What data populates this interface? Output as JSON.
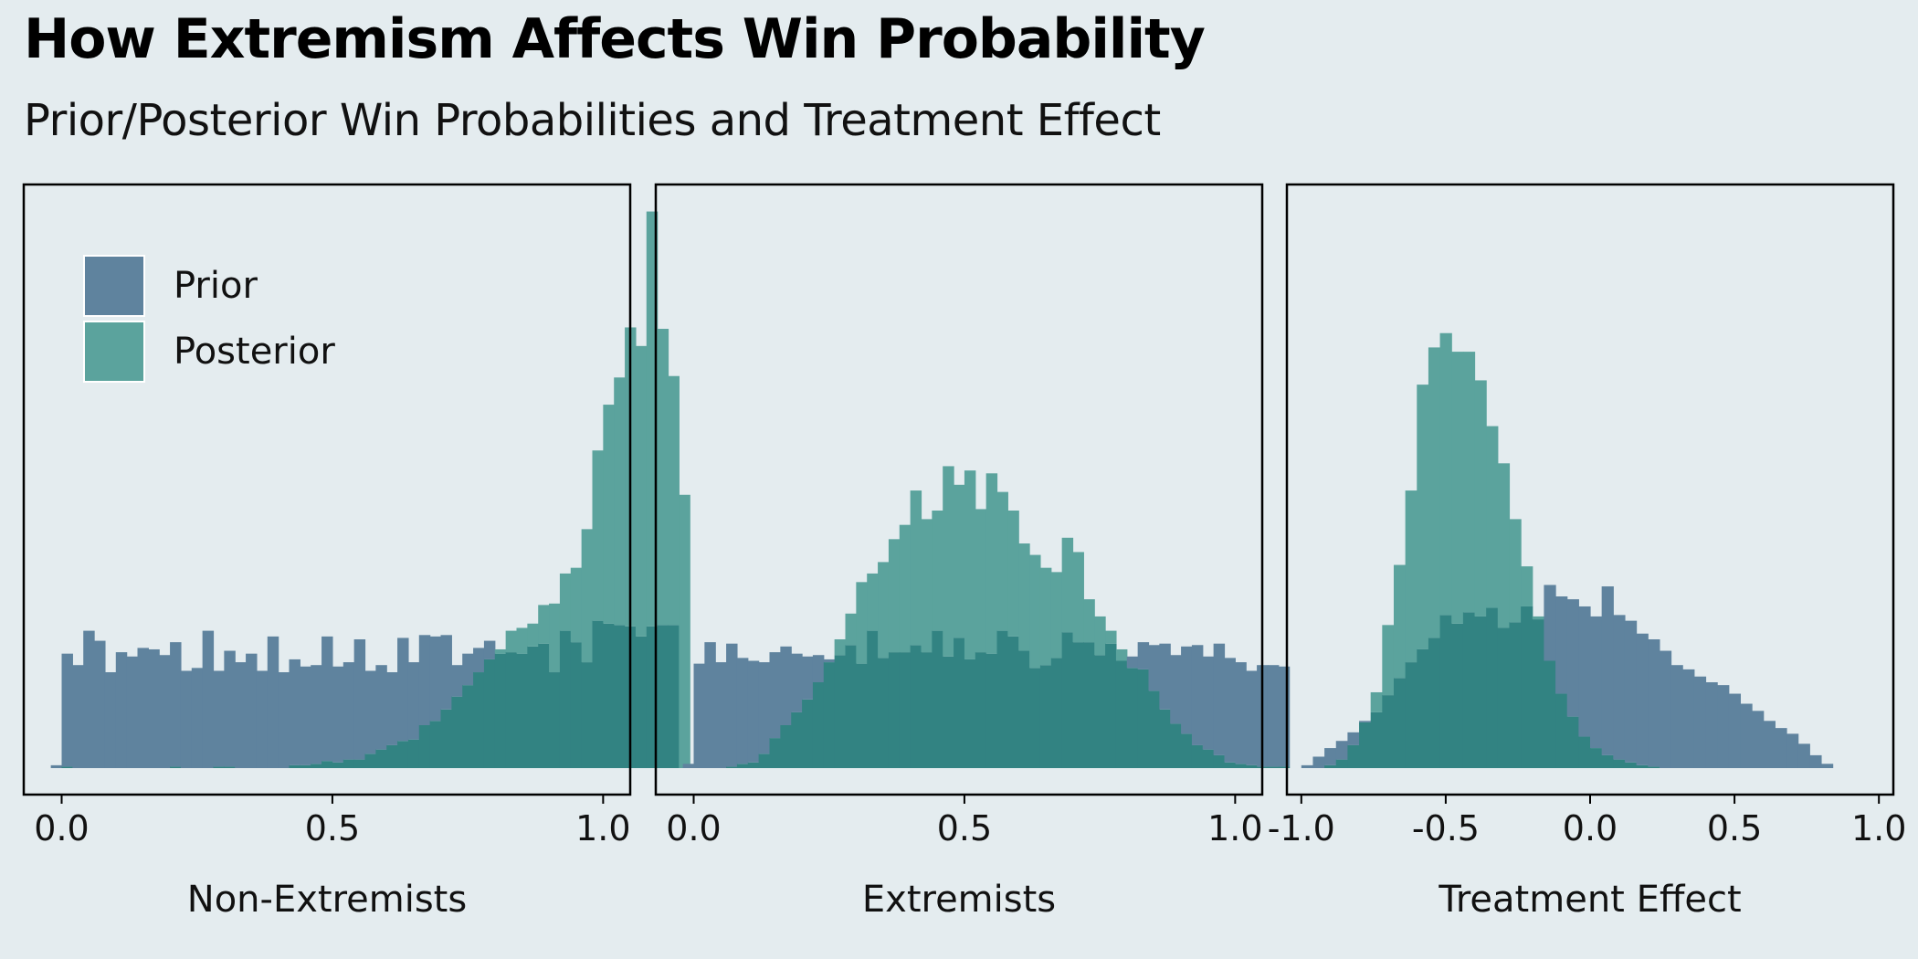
{
  "title": "How Extremism Affects Win Probability",
  "subtitle": "Prior/Posterior Win Probabilities and Treatment Effect",
  "colors": {
    "background": "#e4ecef",
    "prior": "#5f839e",
    "posterior": "#5ba39d",
    "overlap": "#328382",
    "frame": "#000000"
  },
  "legend": {
    "placement": "top-left of first panel",
    "items": [
      {
        "label": "Prior",
        "color": "#5f839e"
      },
      {
        "label": "Posterior",
        "color": "#5ba39d"
      }
    ]
  },
  "chart_data": [
    {
      "type": "histogram",
      "xlabel": "Non-Extremists",
      "ylabel": "",
      "xlim": [
        -0.07,
        1.05
      ],
      "ylim": [
        0,
        0.39
      ],
      "xticks": [
        0.0,
        0.5,
        1.0
      ],
      "xtick_labels": [
        "0.0",
        "0.5",
        "1.0"
      ],
      "bin_start": -0.02,
      "bin_width": 0.02,
      "series": [
        {
          "name": "Prior",
          "values": [
            0.002,
            0.08,
            0.072,
            0.096,
            0.089,
            0.067,
            0.081,
            0.078,
            0.084,
            0.083,
            0.079,
            0.088,
            0.068,
            0.07,
            0.096,
            0.068,
            0.082,
            0.074,
            0.08,
            0.068,
            0.092,
            0.067,
            0.076,
            0.071,
            0.072,
            0.092,
            0.071,
            0.074,
            0.09,
            0.068,
            0.072,
            0.067,
            0.091,
            0.074,
            0.093,
            0.092,
            0.093,
            0.072,
            0.08,
            0.084,
            0.089,
            0.08,
            0.081,
            0.08,
            0.085,
            0.087,
            0.067,
            0.096,
            0.088,
            0.074,
            0.103,
            0.101,
            0.1,
            0.099,
            0.092,
            0.099,
            0.1,
            0.1
          ]
        },
        {
          "name": "Posterior",
          "values": [
            0,
            0.001,
            0,
            0,
            0,
            0,
            0,
            0,
            0,
            0,
            0,
            0.001,
            0,
            0,
            0,
            0.001,
            0.001,
            0,
            0,
            0,
            0,
            0,
            0.002,
            0.002,
            0.003,
            0.005,
            0.004,
            0.006,
            0.006,
            0.01,
            0.013,
            0.016,
            0.019,
            0.02,
            0.03,
            0.033,
            0.041,
            0.05,
            0.058,
            0.067,
            0.076,
            0.083,
            0.096,
            0.098,
            0.101,
            0.114,
            0.115,
            0.136,
            0.14,
            0.167,
            0.222,
            0.254,
            0.273,
            0.308,
            0.295,
            0.389,
            0.307,
            0.274,
            0.191
          ]
        }
      ]
    },
    {
      "type": "histogram",
      "xlabel": "Extremists",
      "ylabel": "",
      "xlim": [
        -0.07,
        1.05
      ],
      "ylim": [
        0,
        0.39
      ],
      "xticks": [
        0.0,
        0.5,
        1.0
      ],
      "xtick_labels": [
        "0.0",
        "0.5",
        "1.0"
      ],
      "bin_start": -0.02,
      "bin_width": 0.02,
      "series": [
        {
          "name": "Prior",
          "values": [
            0.003,
            0.073,
            0.088,
            0.074,
            0.087,
            0.077,
            0.075,
            0.074,
            0.081,
            0.085,
            0.08,
            0.078,
            0.079,
            0.076,
            0.079,
            0.086,
            0.073,
            0.096,
            0.077,
            0.081,
            0.081,
            0.086,
            0.081,
            0.096,
            0.078,
            0.091,
            0.076,
            0.081,
            0.08,
            0.096,
            0.092,
            0.082,
            0.07,
            0.072,
            0.077,
            0.095,
            0.088,
            0.088,
            0.079,
            0.087,
            0.075,
            0.078,
            0.088,
            0.086,
            0.087,
            0.079,
            0.085,
            0.086,
            0.078,
            0.087,
            0.077,
            0.074,
            0.068,
            0.072,
            0.072,
            0.071
          ]
        },
        {
          "name": "Posterior",
          "values": [
            0,
            0,
            0,
            0,
            0.001,
            0.003,
            0.004,
            0.01,
            0.021,
            0.03,
            0.039,
            0.048,
            0.06,
            0.074,
            0.09,
            0.108,
            0.13,
            0.136,
            0.144,
            0.16,
            0.17,
            0.194,
            0.174,
            0.18,
            0.211,
            0.198,
            0.208,
            0.181,
            0.206,
            0.193,
            0.18,
            0.157,
            0.149,
            0.14,
            0.137,
            0.161,
            0.151,
            0.118,
            0.106,
            0.096,
            0.083,
            0.07,
            0.069,
            0.054,
            0.041,
            0.031,
            0.024,
            0.016,
            0.013,
            0.009,
            0.004,
            0.003,
            0.002,
            0.001,
            0.001,
            0.001,
            0,
            0
          ]
        }
      ]
    },
    {
      "type": "histogram",
      "xlabel": "Treatment Effect",
      "ylabel": "",
      "xlim": [
        -1.05,
        1.05
      ],
      "ylim": [
        0,
        0.39
      ],
      "xticks": [
        -1.0,
        -0.5,
        0.0,
        0.5,
        1.0
      ],
      "xtick_labels": [
        "-1.0",
        "-0.5",
        "0.0",
        "0.5",
        "1.0"
      ],
      "bin_start": -1.0,
      "bin_width": 0.04,
      "series": [
        {
          "name": "Prior",
          "values": [
            0.002,
            0.008,
            0.014,
            0.019,
            0.025,
            0.033,
            0.039,
            0.051,
            0.063,
            0.074,
            0.083,
            0.091,
            0.107,
            0.101,
            0.109,
            0.106,
            0.112,
            0.098,
            0.102,
            0.113,
            0.104,
            0.128,
            0.12,
            0.118,
            0.113,
            0.106,
            0.127,
            0.107,
            0.103,
            0.094,
            0.09,
            0.082,
            0.072,
            0.069,
            0.064,
            0.06,
            0.058,
            0.052,
            0.045,
            0.04,
            0.033,
            0.028,
            0.024,
            0.017,
            0.009,
            0.003
          ]
        },
        {
          "name": "Posterior",
          "values": [
            0,
            0,
            0.002,
            0.006,
            0.016,
            0.032,
            0.053,
            0.1,
            0.142,
            0.194,
            0.268,
            0.294,
            0.304,
            0.291,
            0.291,
            0.271,
            0.239,
            0.213,
            0.174,
            0.141,
            0.106,
            0.075,
            0.052,
            0.036,
            0.022,
            0.014,
            0.009,
            0.006,
            0.004,
            0.002,
            0.001,
            0,
            0,
            0,
            0,
            0,
            0,
            0,
            0,
            0,
            0,
            0,
            0,
            0,
            0,
            0
          ]
        }
      ]
    }
  ]
}
